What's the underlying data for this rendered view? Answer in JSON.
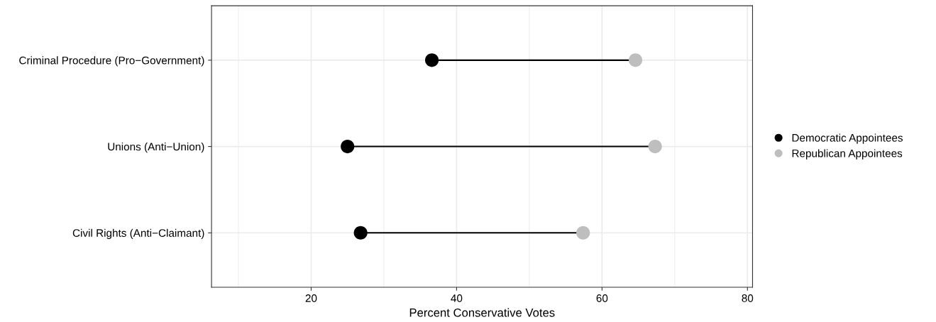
{
  "chart_data": {
    "type": "scatter",
    "orientation": "horizontal",
    "xlabel": "Percent Conservative Votes",
    "categories": [
      "Criminal Procedure (Pro−Government)",
      "Unions (Anti−Union)",
      "Civil Rights (Anti−Claimant)"
    ],
    "series": [
      {
        "name": "Democratic Appointees",
        "color": "#000000",
        "values": [
          36.6,
          25.0,
          26.8
        ]
      },
      {
        "name": "Republican Appointees",
        "color": "#bebebe",
        "values": [
          64.6,
          67.3,
          57.4
        ]
      }
    ],
    "xlim": [
      6.3,
      80.7
    ],
    "xticks": [
      {
        "value": 10,
        "label": null
      },
      20,
      {
        "value": 30,
        "label": null
      },
      40,
      {
        "value": 50,
        "label": null
      },
      60,
      {
        "value": 70,
        "label": null
      },
      80
    ],
    "grid": true,
    "legend": "right",
    "marker": "circle"
  }
}
